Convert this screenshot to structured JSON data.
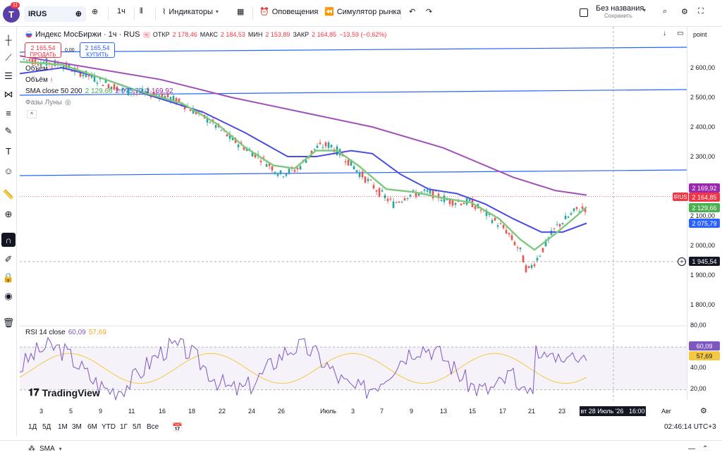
{
  "header": {
    "avatar_letter": "T",
    "notification_count": "11",
    "symbol": "IRUS",
    "interval": "1ч",
    "indicators": "Индикаторы",
    "alerts": "Оповещения",
    "replay": "Симулятор рынка",
    "layout_name": "Без названия",
    "save_label": "Сохранить"
  },
  "legend": {
    "instrument": "Индекс МосБиржи · 1ч · RUS",
    "open_label": "ОТКР",
    "open": "2 178,46",
    "high_label": "МАКС",
    "high": "2 184,53",
    "low_label": "МИН",
    "low": "2 153,89",
    "close_label": "ЗАКР",
    "close": "2 164,85",
    "change": "−13,59 (−0,62%)",
    "volume1": "Объём",
    "volume2": "Объём",
    "sma_label": "SMA close 50 200",
    "sma_values": [
      "2 129,66",
      "2 075,79",
      "2 169,92"
    ],
    "moon_label": "Фазы Луны"
  },
  "trade": {
    "sell_price": "2 165,54",
    "sell_label": "ПРОДАТЬ",
    "spread": "0,00",
    "buy_price": "2 165,54",
    "buy_label": "КУПИТЬ"
  },
  "price_axis": {
    "unit_label": "point",
    "ticks": [
      "2 600,00",
      "2 500,00",
      "2 400,00",
      "2 300,00",
      "2 100,00",
      "2 000,00",
      "1 900,00",
      "1 800,00"
    ],
    "badge_magenta": "2 169,92",
    "badge_red": "2 164,85",
    "badge_green": "2 129,66",
    "badge_blue": "2 075,79",
    "crosshair_price": "1 945,54",
    "irus_tag": "IRUS"
  },
  "rsi": {
    "label": "RSI 14 close",
    "value1": "60,09",
    "value2": "57,69",
    "ticks": [
      "80,00",
      "40,00",
      "20,00"
    ],
    "badge1": "60,09",
    "badge2": "57,69"
  },
  "time_axis": {
    "labels": [
      "3",
      "5",
      "9",
      "11",
      "16",
      "18",
      "22",
      "24",
      "26",
      "Июль",
      "3",
      "7",
      "9",
      "13",
      "15",
      "17",
      "21",
      "23",
      "Авг"
    ],
    "crosshair_time": "вт 28 Июль '26   16:00"
  },
  "bottom": {
    "ranges": [
      "1Д",
      "5Д",
      "1М",
      "3М",
      "6М",
      "YTD",
      "1Г",
      "5Л",
      "Все"
    ],
    "clock": "02:46:14 UTC+3"
  },
  "footer": {
    "tab_label": "SMA"
  },
  "logo": "TradingView",
  "colors": {
    "up": "#26a69a",
    "down": "#ef5350",
    "sma_fast": "#7ec87e",
    "sma_mid": "#4a4ee0",
    "sma_slow": "#a050b8",
    "trend_line": "#2962ff",
    "rsi_line": "#7e57c2",
    "rsi_ma": "#f5c842"
  }
}
